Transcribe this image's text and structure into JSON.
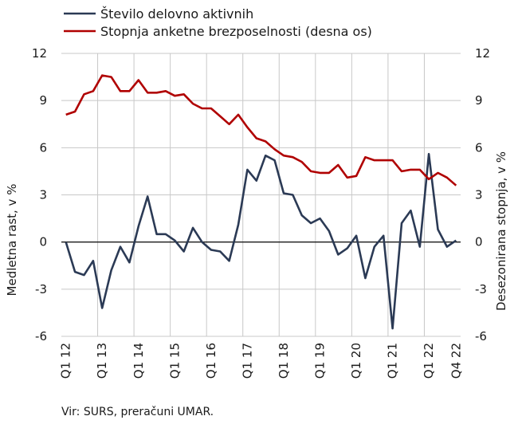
{
  "chart_data": {
    "type": "line",
    "title": "",
    "left_axis": {
      "label": "Medletna rast, v %",
      "range": [
        -6,
        12
      ],
      "ticks": [
        "-6",
        "-3",
        "0",
        "3",
        "6",
        "9",
        "12"
      ]
    },
    "right_axis": {
      "label": "Desezonirana stopnja, v %",
      "range": [
        -6,
        12
      ],
      "ticks": [
        "-6",
        "-3",
        "0",
        "3",
        "6",
        "9",
        "12"
      ]
    },
    "x_ticks": [
      "Q1 12",
      "Q1 13",
      "Q1 14",
      "Q1 15",
      "Q1 16",
      "Q1 17",
      "Q1 18",
      "Q1 19",
      "Q1 20",
      "Q1 21",
      "Q1 22",
      "Q4 22"
    ],
    "x": [
      "Q1 12",
      "Q2 12",
      "Q3 12",
      "Q4 12",
      "Q1 13",
      "Q2 13",
      "Q3 13",
      "Q4 13",
      "Q1 14",
      "Q2 14",
      "Q3 14",
      "Q4 14",
      "Q1 15",
      "Q2 15",
      "Q3 15",
      "Q4 15",
      "Q1 16",
      "Q2 16",
      "Q3 16",
      "Q4 16",
      "Q1 17",
      "Q2 17",
      "Q3 17",
      "Q4 17",
      "Q1 18",
      "Q2 18",
      "Q3 18",
      "Q4 18",
      "Q1 19",
      "Q2 19",
      "Q3 19",
      "Q4 19",
      "Q1 20",
      "Q2 20",
      "Q3 20",
      "Q4 20",
      "Q1 21",
      "Q2 21",
      "Q3 21",
      "Q4 21",
      "Q1 22",
      "Q2 22",
      "Q3 22",
      "Q4 22"
    ],
    "series": [
      {
        "name": "Število delovno aktivnih",
        "color": "#2b3a55",
        "axis": "left",
        "values": [
          0.0,
          -1.9,
          -2.1,
          -1.2,
          -4.2,
          -1.8,
          -0.3,
          -1.3,
          1.0,
          2.9,
          0.5,
          0.5,
          0.1,
          -0.6,
          0.9,
          0.0,
          -0.5,
          -0.6,
          -1.2,
          1.1,
          4.6,
          3.9,
          5.5,
          5.2,
          3.1,
          3.0,
          1.7,
          1.2,
          1.5,
          0.7,
          -0.8,
          -0.4,
          0.4,
          -2.3,
          -0.3,
          0.4,
          -5.5,
          1.2,
          2.0,
          -0.3,
          5.6,
          0.8,
          -0.3,
          0.1
        ]
      },
      {
        "name": "Stopnja anketne brezposelnosti (desna os)",
        "color": "#b00000",
        "axis": "right",
        "values": [
          8.1,
          8.3,
          9.4,
          9.6,
          10.6,
          10.5,
          9.6,
          9.6,
          10.3,
          9.5,
          9.5,
          9.6,
          9.3,
          9.4,
          8.8,
          8.5,
          8.5,
          8.0,
          7.5,
          8.1,
          7.3,
          6.6,
          6.4,
          5.9,
          5.5,
          5.4,
          5.1,
          4.5,
          4.4,
          4.4,
          4.9,
          4.1,
          4.2,
          5.4,
          5.2,
          5.2,
          5.2,
          4.5,
          4.6,
          4.6,
          4.0,
          4.4,
          4.1,
          3.6
        ]
      }
    ],
    "grid": true,
    "legend": "top-left"
  },
  "source": "Vir: SURS, preračuni UMAR."
}
